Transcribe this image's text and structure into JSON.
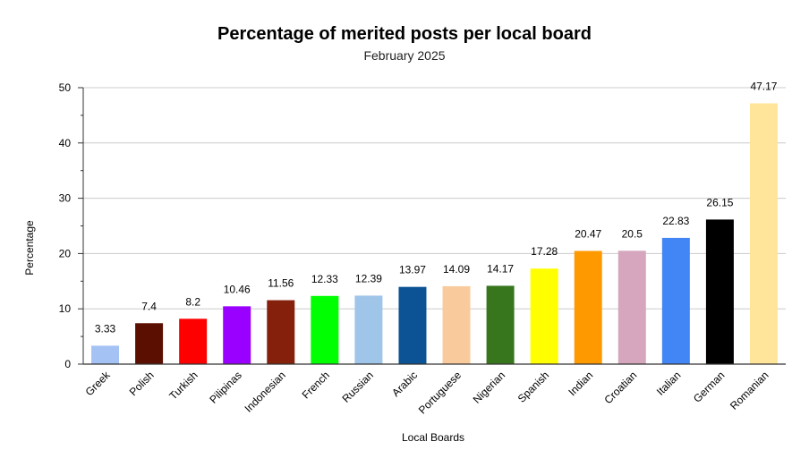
{
  "chart_data": {
    "type": "bar",
    "title": "Percentage of merited posts per local board",
    "subtitle": "February 2025",
    "xlabel": "Local Boards",
    "ylabel": "Percentage",
    "ylim": [
      0,
      50
    ],
    "yticks": [
      0,
      10,
      20,
      30,
      40,
      50
    ],
    "grid": true,
    "legend": "none",
    "categories": [
      "Greek",
      "Polish",
      "Turkish",
      "Pilipinas",
      "Indonesian",
      "French",
      "Russian",
      "Arabic",
      "Portuguese",
      "Nigerian",
      "Spanish",
      "Indian",
      "Croatian",
      "Italian",
      "German",
      "Romanian"
    ],
    "values": [
      3.33,
      7.4,
      8.2,
      10.46,
      11.56,
      12.33,
      12.39,
      13.97,
      14.09,
      14.17,
      17.28,
      20.47,
      20.5,
      22.83,
      26.15,
      47.17
    ],
    "data_labels": [
      "3.33",
      "7.4",
      "8.2",
      "10.46",
      "11.56",
      "12.33",
      "12.39",
      "13.97",
      "14.09",
      "14.17",
      "17.28",
      "20.47",
      "20.5",
      "22.83",
      "26.15",
      "47.17"
    ],
    "colors": [
      "#a4c2f4",
      "#5b0f00",
      "#ff0000",
      "#9900ff",
      "#85200c",
      "#00ff00",
      "#9fc5e8",
      "#0b5394",
      "#f9cb9c",
      "#38761d",
      "#ffff00",
      "#ff9900",
      "#d5a6bd",
      "#4285f4",
      "#000000",
      "#ffe599"
    ]
  }
}
